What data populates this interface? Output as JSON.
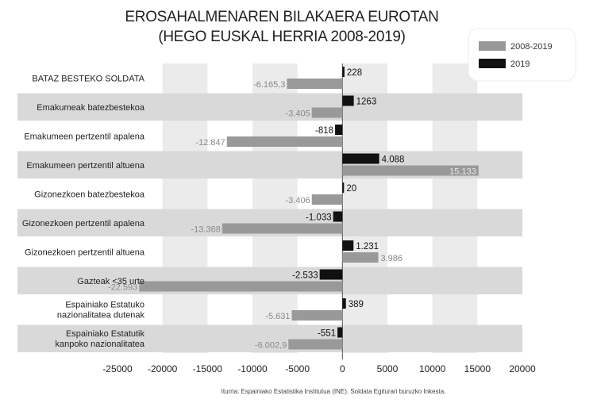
{
  "chart_data": {
    "type": "bar",
    "orientation": "horizontal",
    "title": "EROSAHALMENAREN BILAKAERA EUROTAN",
    "subtitle": "(HEGO EUSKAL HERRIA 2008-2019)",
    "categories": [
      [
        "BATAZ BESTEKO SOLDATA"
      ],
      [
        "Emakumeak batezbestekoa"
      ],
      [
        "Emakumeen pertzentil apalena"
      ],
      [
        "Emakumeen pertzentil altuena"
      ],
      [
        "Gizonezkoen batezbestekoa"
      ],
      [
        "Gizonezkoen pertzentil apalena"
      ],
      [
        "Gizonezkoen pertzentil altuena"
      ],
      [
        "Gazteak <35 urte"
      ],
      [
        "Espainiako Estatuko",
        "nazionalitatea dutenak"
      ],
      [
        "Espainiako Estatutik",
        "kanpoko nazionalitatea"
      ]
    ],
    "series": [
      {
        "name": "2008-2019",
        "color": "#999999",
        "values": [
          -6165.3,
          -3405,
          -12847,
          15133,
          -3406,
          -13368,
          3986,
          -22593,
          -5631,
          -6002.9
        ],
        "labels": [
          "-6.165,3",
          "-3.405",
          "-12.847",
          "15.133",
          "-3.406",
          "-13.368",
          "3.986",
          "-22.593",
          "-5.631",
          "-6.002,9"
        ]
      },
      {
        "name": "2019",
        "color": "#111111",
        "values": [
          228,
          1263,
          -818,
          4088,
          20,
          -1033,
          1231,
          -2533,
          389,
          -551
        ],
        "labels": [
          "228",
          "1263",
          "-818",
          "4.088",
          "20",
          "-1.033",
          "1.231",
          "-2.533",
          "389",
          "-551"
        ]
      }
    ],
    "xlim": [
      -25000,
      20000
    ],
    "xticks": [
      -25000,
      -20000,
      -15000,
      -10000,
      -5000,
      0,
      5000,
      10000,
      15000,
      20000
    ],
    "legend_position": "top-right",
    "source": "Iturria: Espainiako Estatistika Institutua (INE). Soldata Egiturari buruzko Inkesta."
  }
}
